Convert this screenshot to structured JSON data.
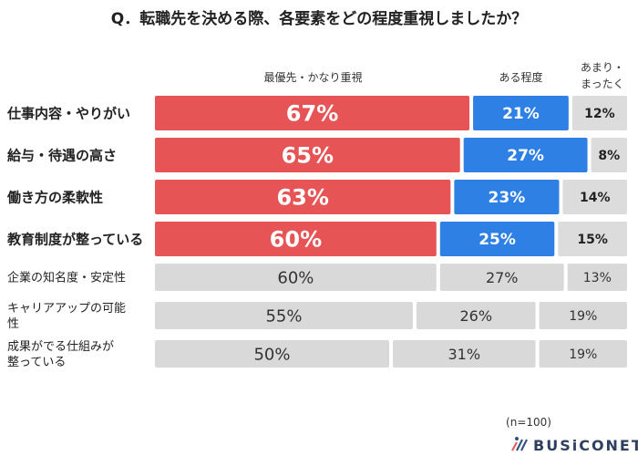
{
  "chart_data": {
    "type": "bar",
    "orientation": "horizontal",
    "stacked": true,
    "title": "Q．転職先を決める際、各要素をどの程度重視しましたか？",
    "legend": [
      "最優先・かなり重視",
      "ある程度",
      "あまり・まったく"
    ],
    "legend_placement": "top",
    "categories": [
      "仕事内容・やりがい",
      "給与・待遇の高さ",
      "働き方の柔軟性",
      "教育制度が整っている",
      "企業の知名度・安定性",
      "キャリアアップの可能性",
      "成果がでる仕組みが整っている"
    ],
    "highlighted": [
      true,
      true,
      true,
      true,
      false,
      false,
      false
    ],
    "series": [
      {
        "name": "最優先・かなり重視",
        "values": [
          67,
          65,
          63,
          60,
          60,
          55,
          50
        ]
      },
      {
        "name": "ある程度",
        "values": [
          21,
          27,
          23,
          25,
          27,
          26,
          31
        ]
      },
      {
        "name": "あまり・まったく",
        "values": [
          12,
          8,
          14,
          15,
          13,
          19,
          19
        ]
      }
    ],
    "unit": "%",
    "xlim": [
      0,
      100
    ],
    "grid": false,
    "colors": {
      "highlight_1": "#e65455",
      "highlight_2": "#2f80e4",
      "highlight_3": "#dcdcdc",
      "plain": "#d9d9d9"
    },
    "note": "(n=100)",
    "logo": "BUSiCONET"
  }
}
